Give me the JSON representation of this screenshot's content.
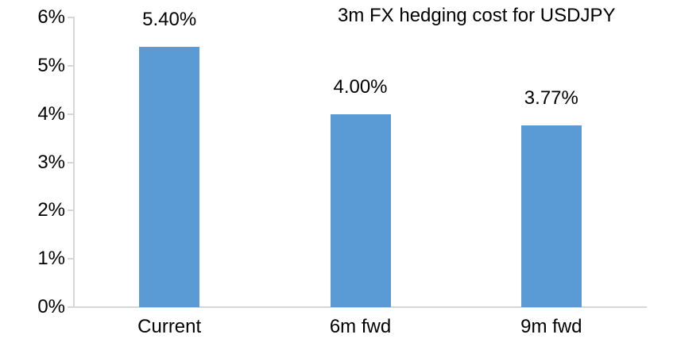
{
  "chart_data": {
    "type": "bar",
    "title": "3m FX hedging cost for USDJPY",
    "categories": [
      "Current",
      "6m fwd",
      "9m fwd"
    ],
    "values": [
      5.4,
      4.0,
      3.77
    ],
    "data_labels": [
      "5.40%",
      "4.00%",
      "3.77%"
    ],
    "xlabel": "",
    "ylabel": "",
    "ylim": [
      0,
      6
    ],
    "ytick_values": [
      0,
      1,
      2,
      3,
      4,
      5,
      6
    ],
    "ytick_labels": [
      "0%",
      "1%",
      "2%",
      "3%",
      "4%",
      "5%",
      "6%"
    ],
    "grid": false,
    "legend": false,
    "bar_color": "#5b9bd5",
    "axis_color": "#d6d6d6",
    "text_color": "#000000",
    "background_color": "#ffffff"
  }
}
